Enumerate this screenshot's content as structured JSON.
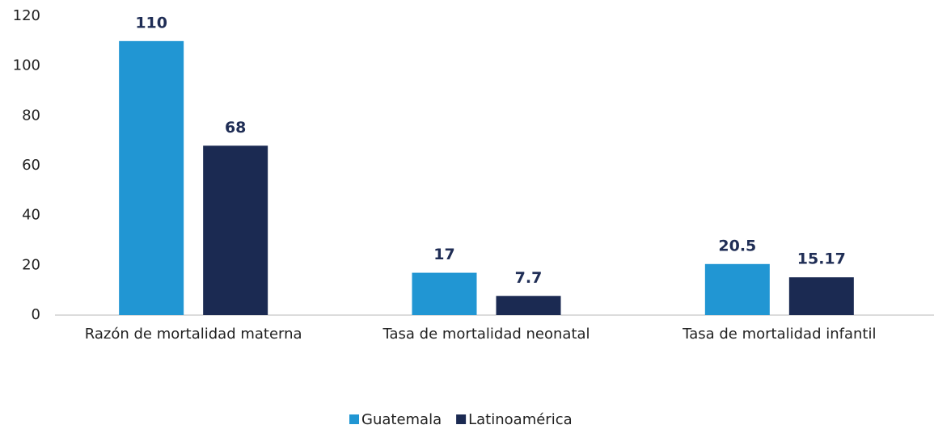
{
  "chart_data": {
    "type": "bar",
    "categories": [
      "Razón de mortalidad materna",
      "Tasa de mortalidad neonatal",
      "Tasa de mortalidad infantil"
    ],
    "series": [
      {
        "name": "Guatemala",
        "color": "#2196d3",
        "values": [
          110,
          17,
          20.5
        ]
      },
      {
        "name": "Latinoamérica",
        "color": "#1b2a52",
        "values": [
          68,
          7.7,
          15.17
        ]
      }
    ],
    "ylim": [
      0,
      120
    ],
    "yticks": [
      0,
      20,
      40,
      60,
      80,
      100,
      120
    ],
    "grid": false,
    "legend": "bottom"
  }
}
